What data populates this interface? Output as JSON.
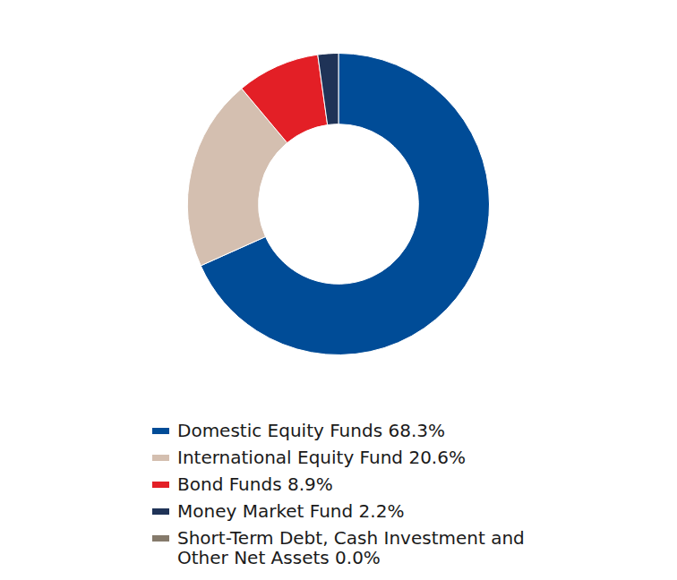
{
  "chart_data": {
    "type": "doughnut",
    "categories": [
      "Domestic Equity Funds 68.3%",
      "International Equity Fund 20.6%",
      "Bond Funds 8.9%",
      "Money Market Fund 2.2%",
      "Short-Term Debt, Cash Investment and Other Net Assets 0.0%"
    ],
    "values": [
      68.3,
      20.6,
      8.9,
      2.2,
      0.0
    ],
    "colors": [
      "#004c97",
      "#d4bfb0",
      "#e31f26",
      "#1f3357",
      "#857a6b"
    ],
    "legend": "bottom"
  }
}
